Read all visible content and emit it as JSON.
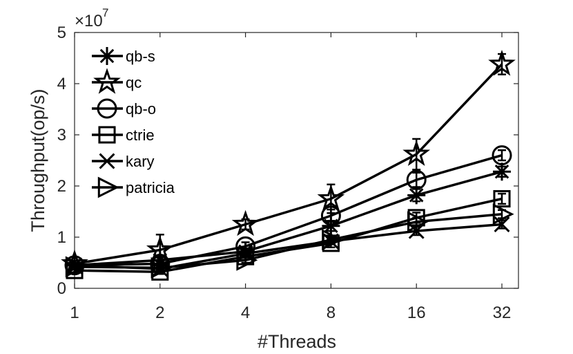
{
  "chart_data": {
    "type": "line",
    "xlabel": "#Threads",
    "ylabel": "Throughput(op/s)",
    "y_multiplier_label": "×10",
    "y_multiplier_exponent": "7",
    "categories": [
      "1",
      "2",
      "4",
      "8",
      "16",
      "32"
    ],
    "y_ticks": [
      "0",
      "1",
      "2",
      "3",
      "4",
      "5"
    ],
    "ylim": [
      0,
      5
    ],
    "y_scale": 1,
    "legend_position": "top-left",
    "grid": false,
    "series": [
      {
        "name": "qb-s",
        "marker": "asterisk",
        "values": [
          0.45,
          0.55,
          0.72,
          1.22,
          1.82,
          2.28
        ],
        "err": [
          0.05,
          0.06,
          0.06,
          0.1,
          0.12,
          0.1
        ]
      },
      {
        "name": "qc",
        "marker": "star",
        "values": [
          0.48,
          0.75,
          1.25,
          1.75,
          2.62,
          4.38
        ],
        "err": [
          0.06,
          0.3,
          0.1,
          0.28,
          0.3,
          0.2
        ]
      },
      {
        "name": "qb-o",
        "marker": "circle",
        "values": [
          0.45,
          0.48,
          0.82,
          1.42,
          2.12,
          2.6
        ],
        "err": [
          0.05,
          0.05,
          0.08,
          0.12,
          0.14,
          0.1
        ]
      },
      {
        "name": "ctrie",
        "marker": "square",
        "values": [
          0.35,
          0.32,
          0.62,
          0.88,
          1.38,
          1.75
        ],
        "err": [
          0.04,
          0.04,
          0.06,
          0.08,
          0.1,
          0.1
        ]
      },
      {
        "name": "kary",
        "marker": "x",
        "values": [
          0.45,
          0.38,
          0.68,
          0.92,
          1.12,
          1.25
        ],
        "err": [
          0.04,
          0.04,
          0.05,
          0.06,
          0.08,
          0.08
        ]
      },
      {
        "name": "patricia",
        "marker": "triangle-right",
        "values": [
          0.42,
          0.4,
          0.55,
          0.95,
          1.3,
          1.45
        ],
        "err": [
          0.04,
          0.04,
          0.05,
          0.06,
          0.08,
          0.08
        ]
      }
    ]
  }
}
